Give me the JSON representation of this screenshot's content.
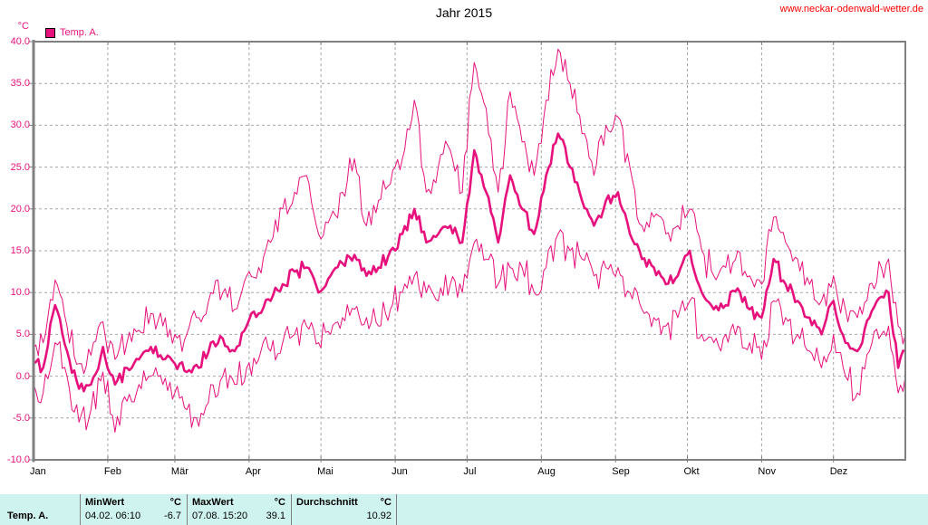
{
  "header": {
    "title": "Jahr 2015",
    "url": "www.neckar-odenwald-wetter.de"
  },
  "legend": {
    "unit": "°C",
    "series_label": "Temp. A."
  },
  "colors": {
    "line": "#E7117E",
    "axis": "#808080",
    "grid": "#A6A6A6",
    "url_text": "#FF0000",
    "table_background": "#CFF4EF"
  },
  "chart_data": {
    "type": "line",
    "title": "Jahr 2015",
    "ylabel": "°C",
    "xlabel": "",
    "ylim": [
      -10,
      40
    ],
    "grid": true,
    "legend_position": "top-left",
    "yticks": [
      40,
      35,
      30,
      25,
      20,
      15,
      10,
      5,
      0,
      -5,
      -10
    ],
    "ytick_labels": [
      "40.0",
      "35.0",
      "30.0",
      "25.0",
      "20.0",
      "15.0",
      "10.0",
      "5.0",
      "0.0",
      "-5.0",
      "-10.0"
    ],
    "xtick_labels": [
      "Jan",
      "Feb",
      "Mär",
      "Apr",
      "Mai",
      "Jun",
      "Jul",
      "Aug",
      "Sep",
      "Okt",
      "Nov",
      "Dez"
    ],
    "month_start_days": [
      1,
      32,
      60,
      91,
      121,
      152,
      182,
      213,
      244,
      274,
      305,
      335
    ],
    "x_unit": "day_of_year_2015",
    "days": [
      1,
      5,
      10,
      15,
      20,
      25,
      30,
      35,
      40,
      45,
      50,
      55,
      60,
      65,
      70,
      75,
      80,
      85,
      90,
      95,
      100,
      105,
      110,
      115,
      120,
      125,
      130,
      135,
      140,
      145,
      150,
      155,
      160,
      165,
      170,
      175,
      180,
      185,
      190,
      195,
      200,
      205,
      210,
      215,
      220,
      225,
      230,
      235,
      240,
      245,
      250,
      255,
      260,
      265,
      270,
      275,
      280,
      285,
      290,
      295,
      300,
      305,
      310,
      315,
      320,
      325,
      330,
      335,
      340,
      345,
      350,
      355,
      358,
      362,
      365
    ],
    "series": [
      {
        "name": "daily-max",
        "values": [
          3.5,
          4,
          11.5,
          6,
          1.5,
          2.5,
          6.5,
          2,
          4,
          5.5,
          7.5,
          6,
          5,
          5,
          7,
          10,
          10,
          8,
          12,
          13,
          16,
          20,
          22,
          24,
          17,
          19,
          22,
          26,
          18,
          21,
          23,
          26,
          33,
          22,
          25,
          27,
          22,
          37.5,
          32,
          22,
          34,
          28,
          24,
          33,
          39.1,
          35,
          29,
          24,
          30,
          31,
          25,
          18,
          19,
          17,
          18,
          20,
          15,
          12,
          13,
          15,
          12,
          11,
          19,
          16,
          14,
          11,
          9,
          12,
          8,
          7,
          11,
          13,
          14,
          6,
          5
        ]
      },
      {
        "name": "daily-mean",
        "values": [
          1.5,
          1,
          8.5,
          3,
          -1.5,
          -1,
          3.5,
          -1,
          1,
          2,
          3.5,
          2,
          1.5,
          0.5,
          1,
          4,
          4.5,
          3,
          6,
          7.5,
          9,
          11,
          12.5,
          13,
          10,
          12,
          13.5,
          14.5,
          12,
          13,
          15,
          17,
          20,
          16,
          17,
          18,
          16,
          27,
          22,
          16,
          24,
          20,
          17,
          24,
          29,
          25,
          21,
          18,
          21,
          22,
          17,
          14,
          13,
          11,
          12,
          15,
          10,
          8,
          8.5,
          10.5,
          8,
          7,
          14,
          11,
          9,
          7,
          5,
          9,
          4,
          3,
          7,
          9.5,
          10,
          1,
          3
        ]
      },
      {
        "name": "daily-min",
        "values": [
          -1,
          -2,
          4,
          0,
          -5.5,
          -4,
          0.5,
          -6.7,
          -3,
          -1,
          0,
          -1,
          -2,
          -4,
          -6,
          -1,
          0,
          -1,
          1,
          2,
          3,
          4,
          5,
          6,
          4,
          5,
          7,
          8,
          7,
          6,
          8,
          10,
          12,
          10,
          9,
          11,
          10,
          16,
          14,
          11,
          13,
          13,
          10,
          13,
          17,
          15,
          14,
          12,
          13,
          13,
          10,
          8,
          7,
          6,
          7,
          9,
          5,
          4,
          5,
          6,
          4,
          2,
          9,
          7,
          5,
          3,
          1,
          5,
          0,
          -2,
          3,
          5,
          6,
          -2,
          0
        ]
      }
    ]
  },
  "table": {
    "row_label": "Temp. A.",
    "columns": [
      {
        "header": "MinWert",
        "unit": "°C",
        "value": "04.02.  06:10",
        "number": "-6.7"
      },
      {
        "header": "MaxWert",
        "unit": "°C",
        "value": "07.08.  15:20",
        "number": "39.1"
      },
      {
        "header": "Durchschnitt",
        "unit": "°C",
        "value": "",
        "number": "10.92"
      }
    ]
  }
}
